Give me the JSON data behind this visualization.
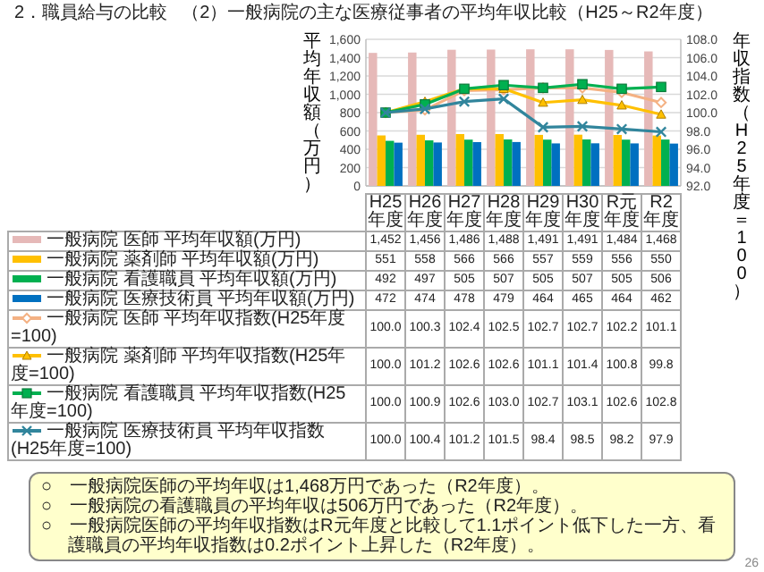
{
  "chart_data": {
    "type": "bar",
    "title": "2．職員給与の比較",
    "subtitle": "（2）一般病院の主な医療従事者の平均年収比較（H25～R2年度）",
    "ylabel": "平均年収額（万円）",
    "y2label": "年収指数（H25年度＝100）",
    "categories": [
      "H25年度",
      "H26年度",
      "H27年度",
      "H28年度",
      "H29年度",
      "H30年度",
      "R元年度",
      "R2年度"
    ],
    "series": [
      {
        "name": "一般病院 医師 平均年収額(万円)",
        "color": "#e6b9b8",
        "values": [
          1452,
          1456,
          1486,
          1488,
          1491,
          1491,
          1484,
          1468
        ],
        "value_labels": [
          "1,452",
          "1,456",
          "1,486",
          "1,488",
          "1,491",
          "1,491",
          "1,484",
          "1,468"
        ]
      },
      {
        "name": "一般病院 薬剤師 平均年収額(万円)",
        "color": "#ffc000",
        "values": [
          551,
          558,
          566,
          566,
          557,
          559,
          556,
          550
        ],
        "value_labels": [
          "551",
          "558",
          "566",
          "566",
          "557",
          "559",
          "556",
          "550"
        ]
      },
      {
        "name": "一般病院 看護職員 平均年収額(万円)",
        "color": "#00b050",
        "values": [
          492,
          497,
          505,
          507,
          505,
          507,
          505,
          506
        ],
        "value_labels": [
          "492",
          "497",
          "505",
          "507",
          "505",
          "507",
          "505",
          "506"
        ]
      },
      {
        "name": "一般病院 医療技術員 平均年収額(万円)",
        "color": "#0070c0",
        "values": [
          472,
          474,
          478,
          479,
          464,
          465,
          464,
          462
        ],
        "value_labels": [
          "472",
          "474",
          "478",
          "479",
          "464",
          "465",
          "464",
          "462"
        ]
      },
      {
        "name": "一般病院 医師 平均年収指数(H25年度=100)",
        "type": "line",
        "axis": "y2",
        "color": "#f4b183",
        "marker": "diamond",
        "values": [
          100.0,
          100.3,
          102.4,
          102.5,
          102.7,
          102.7,
          102.2,
          101.1
        ],
        "value_labels": [
          "100.0",
          "100.3",
          "102.4",
          "102.5",
          "102.7",
          "102.7",
          "102.2",
          "101.1"
        ]
      },
      {
        "name": "一般病院 薬剤師 平均年収指数(H25年度=100)",
        "type": "line",
        "axis": "y2",
        "color": "#ffc000",
        "marker": "triangle",
        "values": [
          100.0,
          101.2,
          102.6,
          102.6,
          101.1,
          101.4,
          100.8,
          99.8
        ],
        "value_labels": [
          "100.0",
          "101.2",
          "102.6",
          "102.6",
          "101.1",
          "101.4",
          "100.8",
          "99.8"
        ]
      },
      {
        "name": "一般病院 看護職員 平均年収指数(H25年度=100)",
        "type": "line",
        "axis": "y2",
        "color": "#00b050",
        "marker": "square",
        "values": [
          100.0,
          100.9,
          102.6,
          103.0,
          102.7,
          103.1,
          102.6,
          102.8
        ],
        "value_labels": [
          "100.0",
          "100.9",
          "102.6",
          "103.0",
          "102.7",
          "103.1",
          "102.6",
          "102.8"
        ]
      },
      {
        "name": "一般病院 医療技術員 平均年収指数(H25年度=100)",
        "type": "line",
        "axis": "y2",
        "color": "#31859c",
        "marker": "cross",
        "values": [
          100.0,
          100.4,
          101.2,
          101.5,
          98.4,
          98.5,
          98.2,
          97.9
        ],
        "value_labels": [
          "100.0",
          "100.4",
          "101.2",
          "101.5",
          "98.4",
          "98.5",
          "98.2",
          "97.9"
        ]
      }
    ],
    "ylim": [
      0,
      1600
    ],
    "yticks": [
      0,
      200,
      400,
      600,
      800,
      {
        "value": 1000,
        "label": "1,000"
      },
      {
        "value": 1200,
        "label": "1,200"
      },
      {
        "value": 1400,
        "label": "1,400"
      },
      {
        "value": 1600,
        "label": "1,600"
      }
    ],
    "y2lim": [
      92,
      108
    ],
    "y2ticks": [
      {
        "value": 92,
        "label": "92.0"
      },
      {
        "value": 94,
        "label": "94.0"
      },
      {
        "value": 96,
        "label": "96.0"
      },
      {
        "value": 98,
        "label": "98.0"
      },
      {
        "value": 100,
        "label": "100.0"
      },
      {
        "value": 102,
        "label": "102.0"
      },
      {
        "value": 104,
        "label": "104.0"
      },
      {
        "value": 106,
        "label": "106.0"
      },
      {
        "value": 108,
        "label": "108.0"
      }
    ],
    "grid": "y",
    "legend": "bottom",
    "annotations": [
      "○　一般病院医師の平均年収は1,468万円であった（R2年度）。",
      "○　一般病院の看護職員の平均年収は506万円であった（R2年度）。",
      "○　一般病院医師の平均年収指数はR元年度と比較して1.1ポイント低下した一方、看護職員の平均年収指数は0.2ポイント上昇した（R2年度）。",
      "26"
    ]
  }
}
